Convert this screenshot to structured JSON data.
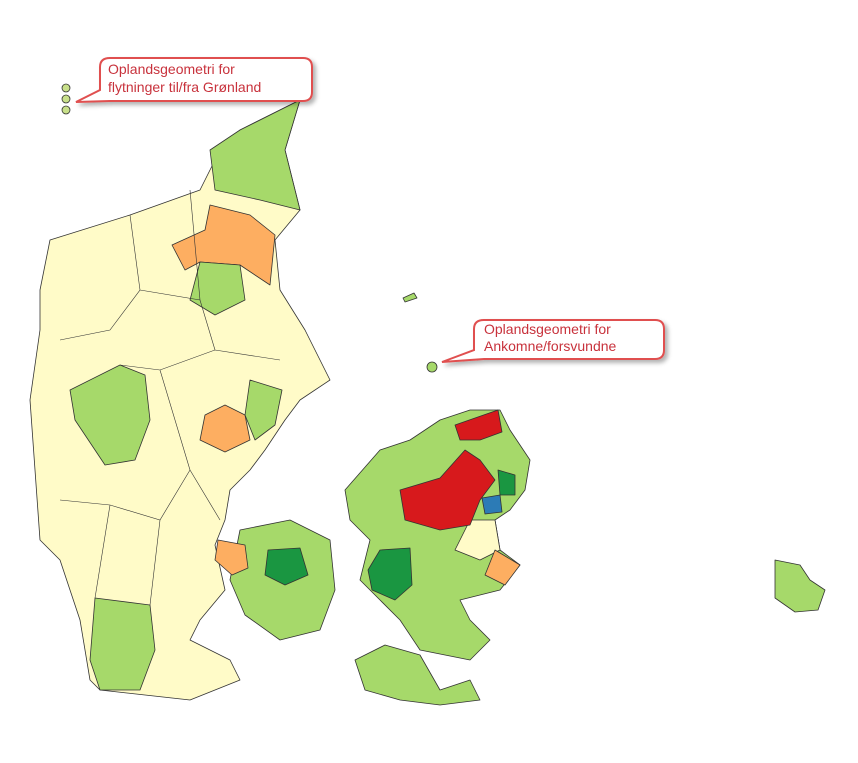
{
  "callouts": [
    {
      "lines": [
        "Oplandsgeometri for",
        "flytninger til/fra Grønland"
      ]
    },
    {
      "lines": [
        "Oplandsgeometri for",
        "Ankomne/forsvundne"
      ]
    }
  ]
}
